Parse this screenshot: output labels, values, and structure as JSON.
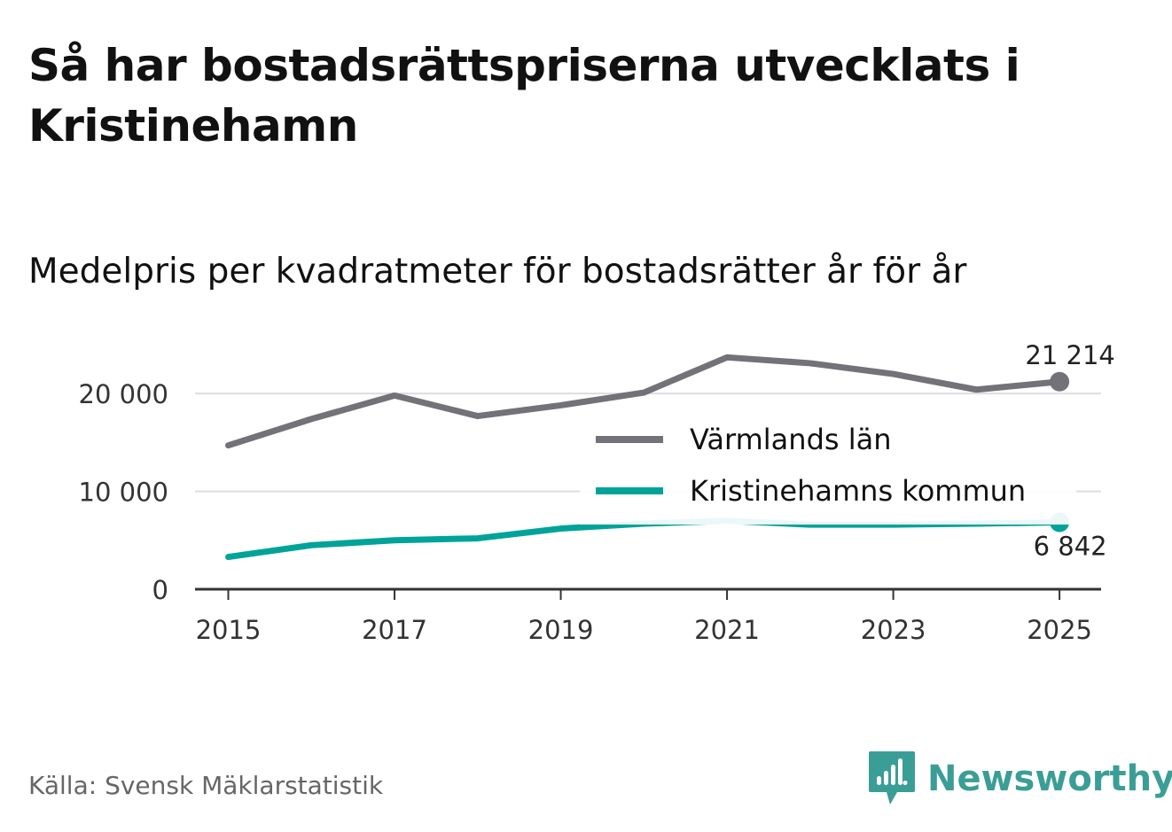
{
  "title": "Så har bostadsrättspriserna utvecklats i Kristinehamn",
  "subtitle": "Medelpris per kvadratmeter för bostadsrätter år för år",
  "source": "Källa: Svensk Mäklarstatistik",
  "brand": "Newsworthy",
  "colors": {
    "county": "#737278",
    "municipality": "#00a39a",
    "grid": "#dddddd",
    "axis": "#333333",
    "brand": "#3a9e96"
  },
  "chart_data": {
    "type": "line",
    "title": "Medelpris per kvadratmeter för bostadsrätter år för år",
    "xlabel": "",
    "ylabel": "",
    "x": [
      2015,
      2016,
      2017,
      2018,
      2019,
      2020,
      2021,
      2022,
      2023,
      2024,
      2025
    ],
    "xticks": [
      "2015",
      "2017",
      "2019",
      "2021",
      "2023",
      "2025"
    ],
    "yticks": [
      {
        "value": 0,
        "label": "0"
      },
      {
        "value": 10000,
        "label": "10 000"
      },
      {
        "value": 20000,
        "label": "20 000"
      }
    ],
    "ylim": [
      0,
      24000
    ],
    "xlim": [
      2014.6,
      2025.5
    ],
    "grid": true,
    "legend_position": "center-right",
    "series": [
      {
        "name": "Värmlands län",
        "color": "#737278",
        "values": [
          14700,
          17400,
          19800,
          17700,
          18800,
          20100,
          23700,
          23100,
          22000,
          20400,
          21214
        ],
        "end_label": "21 214"
      },
      {
        "name": "Kristinehamns kommun",
        "color": "#00a39a",
        "values": [
          3300,
          4500,
          5000,
          5200,
          6200,
          6700,
          7000,
          6600,
          6600,
          6700,
          6842
        ],
        "end_label": "6 842"
      }
    ]
  }
}
